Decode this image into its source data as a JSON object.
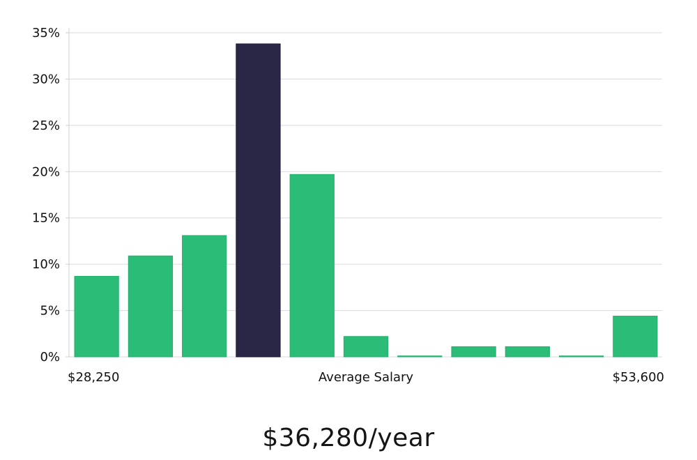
{
  "chart_data": {
    "type": "bar",
    "title": "",
    "xlabel": "Average Salary",
    "ylabel": "",
    "x_min_label": "$28,250",
    "x_max_label": "$53,600",
    "ylim": [
      0,
      35
    ],
    "yticks": [
      0,
      5,
      10,
      15,
      20,
      25,
      30,
      35
    ],
    "ytick_labels": [
      "0%",
      "5%",
      "10%",
      "15%",
      "20%",
      "25%",
      "30%",
      "35%"
    ],
    "values": [
      8.7,
      10.9,
      13.1,
      33.8,
      19.7,
      2.2,
      0.1,
      1.1,
      1.1,
      0.1,
      4.4
    ],
    "highlight_index": 3,
    "grid": true,
    "colors": {
      "bar": "#2bbd77",
      "highlight": "#2a2746"
    }
  },
  "salary_display": "$36,280/year"
}
